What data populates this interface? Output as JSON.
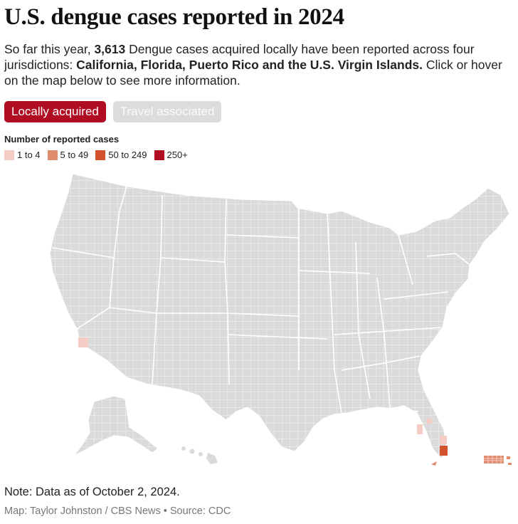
{
  "header": {
    "title": "U.S. dengue cases reported in 2024",
    "intro_before": "So far this year, ",
    "intro_count": "3,613",
    "intro_middle": " Dengue cases acquired locally have been reported across four jurisdictions: ",
    "intro_places": "California, Florida, Puerto Rico and the U.S. Virgin Islands.",
    "intro_after": " Click or hover on the map below to see more information."
  },
  "tabs": [
    {
      "label": "Locally acquired",
      "active": true
    },
    {
      "label": "Travel associated",
      "active": false
    }
  ],
  "legend": {
    "title": "Number of reported cases",
    "items": [
      {
        "label": "1 to 4",
        "color": "#f6cdc4"
      },
      {
        "label": "5 to 49",
        "color": "#e08a6e"
      },
      {
        "label": "50 to 249",
        "color": "#d4532f"
      },
      {
        "label": "250+",
        "color": "#b00d23"
      }
    ]
  },
  "map": {
    "land_color": "#dadada",
    "border_color": "#ffffff",
    "highlighted_regions": [
      {
        "name": "Southern California county",
        "category": "1 to 4"
      },
      {
        "name": "Southwest Florida county",
        "category": "1 to 4"
      },
      {
        "name": "Southeast Florida county",
        "category": "1 to 4"
      },
      {
        "name": "Miami-Dade County, Florida",
        "category": "50 to 249"
      },
      {
        "name": "Florida Keys",
        "category": "5 to 49"
      },
      {
        "name": "Puerto Rico municipalities",
        "category": "5 to 49"
      },
      {
        "name": "U.S. Virgin Islands",
        "category": "5 to 49"
      }
    ]
  },
  "footer": {
    "note": "Note: Data as of October 2, 2024.",
    "credit": "Map: Taylor Johnston / CBS News • Source: CDC"
  }
}
